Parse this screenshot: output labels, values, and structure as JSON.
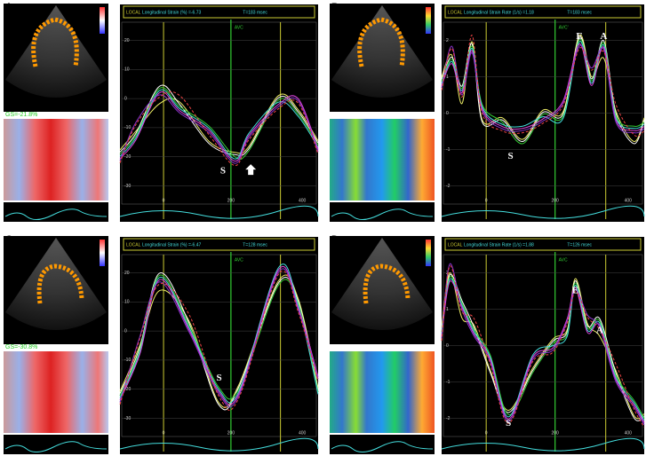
{
  "panels": [
    {
      "letter": "A",
      "gs": "GS=-21.8%",
      "header": {
        "mode": "LOCAL",
        "measure": "Longitudinal Strain (%) =-6.73",
        "time": "T=183 msec"
      },
      "avc": "AVC",
      "annotations": [
        "S"
      ],
      "yticks": [
        "20",
        "10",
        "0",
        "-10",
        "-20",
        "-30"
      ],
      "xticks": [
        "0",
        "200",
        "400"
      ]
    },
    {
      "letter": "B",
      "header": {
        "mode": "LOCAL",
        "measure": "Longitudinal Strain Rate (1/s) =1.18",
        "time": "T=183 msec"
      },
      "avc": "AVC'",
      "annotations": [
        "S",
        "E",
        "A"
      ],
      "yticks": [
        "2",
        "1",
        "0",
        "-1",
        "-2"
      ],
      "xticks": [
        "0",
        "200",
        "400"
      ]
    },
    {
      "letter": "C",
      "gs": "GS=-30.8%",
      "header": {
        "mode": "LOCAL",
        "measure": "Longitudinal Strain (%) =-6.47",
        "time": "T=128 msec"
      },
      "avc": "AVC",
      "annotations": [
        "S"
      ],
      "yticks": [
        "20",
        "10",
        "0",
        "-10",
        "-20",
        "-30"
      ],
      "xticks": [
        "0",
        "200",
        "400"
      ]
    },
    {
      "letter": "D",
      "header": {
        "mode": "LOCAL",
        "measure": "Longitudinal Strain Rate (1/s) =1.88",
        "time": "T=126 msec"
      },
      "avc": "AVC",
      "annotations": [
        "E",
        "A",
        "S"
      ],
      "yticks": [
        "2",
        "1",
        "0",
        "-1",
        "-2"
      ],
      "xticks": [
        "0",
        "200",
        "400"
      ]
    }
  ]
}
